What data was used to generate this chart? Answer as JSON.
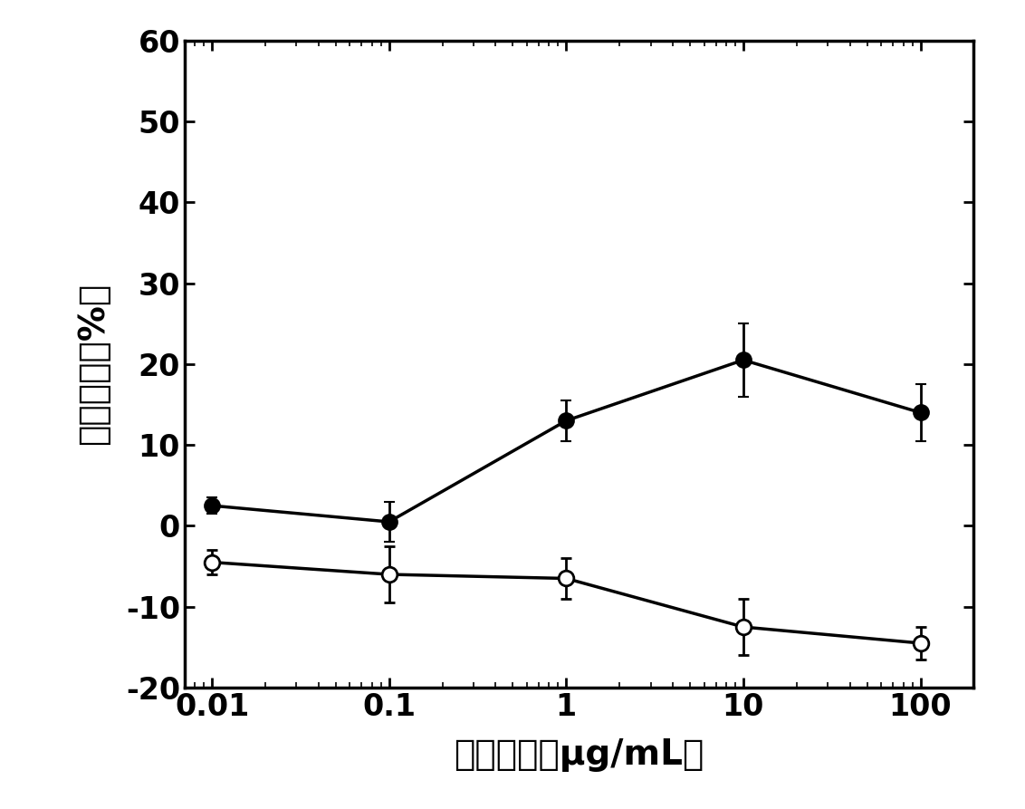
{
  "x": [
    0.01,
    0.1,
    1,
    10,
    100
  ],
  "filled_y": [
    2.5,
    0.5,
    13.0,
    20.5,
    14.0
  ],
  "filled_yerr": [
    1.0,
    2.5,
    2.5,
    4.5,
    3.5
  ],
  "open_y": [
    -4.5,
    -6.0,
    -6.5,
    -12.5,
    -14.5
  ],
  "open_yerr": [
    1.5,
    3.5,
    2.5,
    3.5,
    2.0
  ],
  "xlabel": "抗体浓度（μg/mL）",
  "ylabel": "細胞弹性（%）",
  "ylim": [
    -20,
    60
  ],
  "yticks": [
    -20,
    -10,
    0,
    10,
    20,
    30,
    40,
    50,
    60
  ],
  "xtick_labels": [
    "0.01",
    "0.1",
    "1",
    "10",
    "100"
  ],
  "line_color": "#000000",
  "filled_marker_color": "#000000",
  "open_marker_color": "#ffffff",
  "marker_size": 12,
  "linewidth": 2.5,
  "background_color": "#ffffff",
  "capsize": 4,
  "tick_fontsize": 24,
  "label_fontsize": 28
}
